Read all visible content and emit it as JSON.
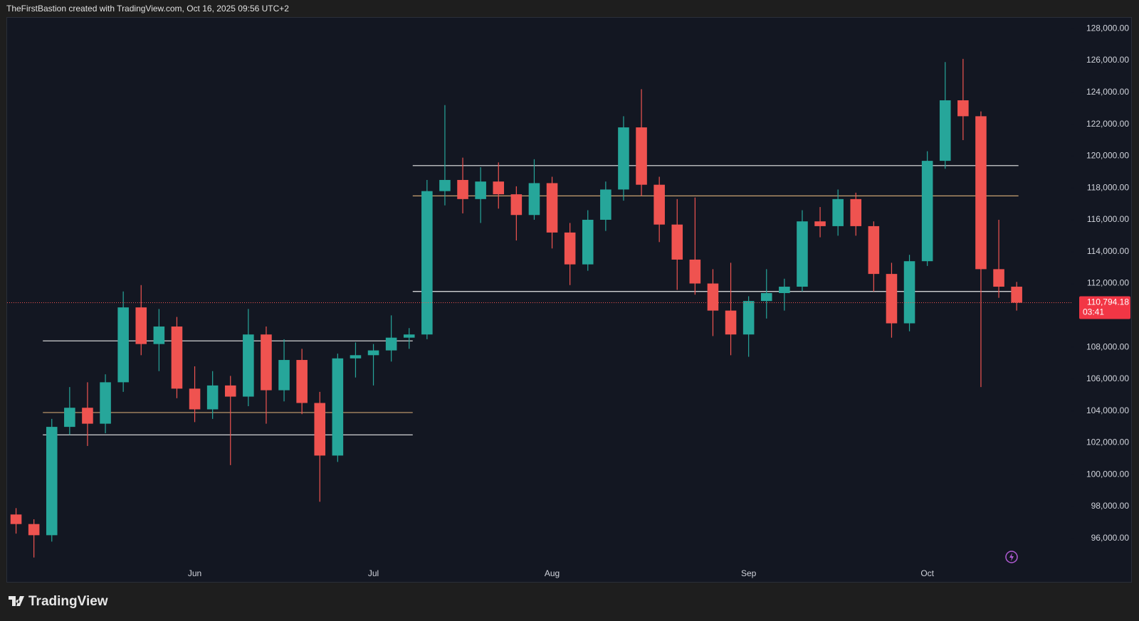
{
  "header": "TheFirstBastion created with TradingView.com, Oct 16, 2025 09:56 UTC+2",
  "footer": "TradingView",
  "chart_data": {
    "type": "candlestick",
    "categories": [
      null,
      null,
      null,
      null,
      null,
      null,
      null,
      null,
      null,
      null,
      "Jun",
      null,
      null,
      null,
      null,
      null,
      null,
      null,
      null,
      null,
      "Jul",
      null,
      null,
      null,
      null,
      null,
      null,
      null,
      null,
      null,
      "Aug",
      null,
      null,
      null,
      null,
      null,
      null,
      null,
      null,
      null,
      null,
      "Sep",
      null,
      null,
      null,
      null,
      null,
      null,
      null,
      null,
      null,
      "Oct",
      null,
      null,
      null,
      null,
      null
    ],
    "open": [
      97500,
      96900,
      96200,
      103000,
      104200,
      103200,
      105800,
      110500,
      108200,
      109300,
      105400,
      104100,
      105600,
      104900,
      108800,
      105300,
      107200,
      104500,
      101200,
      107300,
      107500,
      107800,
      108600,
      108800,
      117800,
      118500,
      117300,
      118400,
      117600,
      116300,
      118300,
      115200,
      113200,
      116000,
      117900,
      121800,
      118200,
      115700,
      113500,
      112000,
      110300,
      108800,
      110900,
      111400,
      111800,
      115900,
      115600,
      117300,
      115600,
      112600,
      109500,
      113400,
      119700,
      123500,
      122500,
      112900,
      111800
    ],
    "high": [
      97900,
      97200,
      103500,
      105500,
      105800,
      106300,
      111500,
      111900,
      110400,
      109900,
      106800,
      106500,
      106200,
      110400,
      109300,
      108500,
      107900,
      105200,
      107600,
      108300,
      108200,
      110000,
      109200,
      118500,
      123200,
      119900,
      119300,
      119600,
      118100,
      119800,
      118700,
      115800,
      116600,
      118400,
      122500,
      124200,
      118700,
      117300,
      117400,
      112900,
      113300,
      111200,
      112900,
      112300,
      116600,
      116800,
      117900,
      117700,
      115900,
      113300,
      113800,
      120300,
      125900,
      126100,
      122800,
      116000,
      112100
    ],
    "low": [
      96300,
      94800,
      95800,
      102500,
      101800,
      102600,
      105200,
      107500,
      106500,
      104800,
      103300,
      103500,
      100600,
      104300,
      103200,
      104600,
      103800,
      98300,
      100800,
      106100,
      105600,
      107100,
      107900,
      108500,
      116900,
      116400,
      115800,
      116700,
      114700,
      116000,
      114200,
      111900,
      112800,
      115300,
      117200,
      117500,
      114600,
      111600,
      111300,
      108700,
      107500,
      107400,
      109800,
      110300,
      111500,
      114900,
      115000,
      115000,
      111500,
      108600,
      109000,
      113100,
      119200,
      121000,
      105500,
      111100,
      110300
    ],
    "close": [
      96900,
      96200,
      103000,
      104200,
      103200,
      105800,
      110500,
      108200,
      109300,
      105400,
      104100,
      105600,
      104900,
      108800,
      105300,
      107200,
      104500,
      101200,
      107300,
      107500,
      107800,
      108600,
      108800,
      117800,
      118500,
      117300,
      118400,
      117600,
      116300,
      118300,
      115200,
      113200,
      116000,
      117900,
      121800,
      118200,
      115700,
      113500,
      112000,
      110300,
      108800,
      110900,
      111400,
      111800,
      115900,
      115600,
      117300,
      115600,
      112600,
      109500,
      113400,
      119700,
      123500,
      122500,
      112900,
      111800,
      110794.18
    ],
    "last_close_label": "110,794.18",
    "countdown": "03:41",
    "up_color": "#26a69a",
    "down_color": "#ef5350",
    "levels": [
      {
        "value": 108400,
        "color": "#e8e8e8"
      },
      {
        "value": 103900,
        "color": "#c8a070"
      },
      {
        "value": 102500,
        "color": "#e8e8e8"
      },
      {
        "value": 119400,
        "color": "#e8e8e8"
      },
      {
        "value": 117500,
        "color": "#c8a070"
      },
      {
        "value": 111500,
        "color": "#e8e8e8"
      }
    ],
    "ylim": [
      93270,
      128680
    ],
    "yticks": [
      {
        "value": 96000,
        "label": "96,000.00"
      },
      {
        "value": 98000,
        "label": "98,000.00"
      },
      {
        "value": 100000,
        "label": "100,000.00"
      },
      {
        "value": 102000,
        "label": "102,000.00"
      },
      {
        "value": 104000,
        "label": "104,000.00"
      },
      {
        "value": 106000,
        "label": "106,000.00"
      },
      {
        "value": 108000,
        "label": "108,000.00"
      },
      {
        "value": 110000,
        "label": "110,000.00"
      },
      {
        "value": 112000,
        "label": "112,000.00"
      },
      {
        "value": 114000,
        "label": "114,000.00"
      },
      {
        "value": 116000,
        "label": "116,000.00"
      },
      {
        "value": 118000,
        "label": "118,000.00"
      },
      {
        "value": 120000,
        "label": "120,000.00"
      },
      {
        "value": 122000,
        "label": "122,000.00"
      },
      {
        "value": 124000,
        "label": "124,000.00"
      },
      {
        "value": 126000,
        "label": "126,000.00"
      },
      {
        "value": 128000,
        "label": "128,000.00"
      }
    ]
  }
}
